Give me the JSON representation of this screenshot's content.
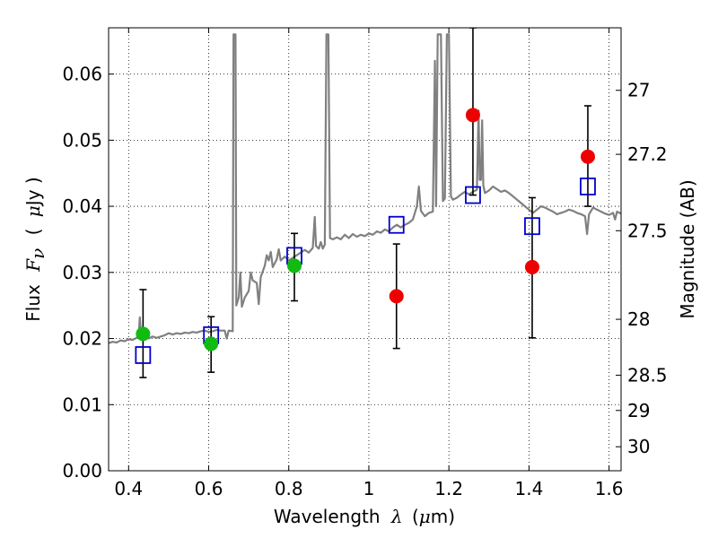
{
  "chart_data": {
    "type": "scatter",
    "xlabel": {
      "main": "Wavelength",
      "symbol": "λ",
      "unit_open": "(",
      "unit_mu": "μ",
      "unit_rest": "m)"
    },
    "ylabel": {
      "main": "Flux",
      "symbol": "F",
      "subscript": "ν",
      "unit_open": "(",
      "unit_mu": "μ",
      "unit_rest": "Jy )"
    },
    "y2label": "Magnitude (AB)",
    "xlim": [
      0.35,
      1.63
    ],
    "ylim": [
      0.0,
      0.067
    ],
    "x_ticks": [
      0.4,
      0.6,
      0.8,
      1.0,
      1.2,
      1.4,
      1.6
    ],
    "x_tick_labels": [
      "0.4",
      "0.6",
      "0.8",
      "1",
      "1.2",
      "1.4",
      "1.6"
    ],
    "y_ticks": [
      0.0,
      0.01,
      0.02,
      0.03,
      0.04,
      0.05,
      0.06
    ],
    "y_tick_labels": [
      "0.00",
      "0.01",
      "0.02",
      "0.03",
      "0.04",
      "0.05",
      "0.06"
    ],
    "mag_ticks": [
      27,
      27.2,
      27.5,
      28,
      28.5,
      29,
      30
    ],
    "mag_tick_labels": [
      "27",
      "27.2",
      "27.5",
      "28",
      "28.5",
      "29",
      "30"
    ],
    "grid": true,
    "colors": {
      "spectrum": "#808080",
      "model": "#0000cc",
      "red": "#ee0000",
      "green": "#11bb11",
      "error": "#000000"
    },
    "spectrum": {
      "name": "model spectrum",
      "points": [
        [
          0.35,
          0.0193
        ],
        [
          0.36,
          0.0195
        ],
        [
          0.37,
          0.0194
        ],
        [
          0.38,
          0.0197
        ],
        [
          0.39,
          0.0196
        ],
        [
          0.4,
          0.0199
        ],
        [
          0.41,
          0.0198
        ],
        [
          0.42,
          0.0201
        ],
        [
          0.425,
          0.0205
        ],
        [
          0.428,
          0.0232
        ],
        [
          0.431,
          0.0205
        ],
        [
          0.44,
          0.0203
        ],
        [
          0.45,
          0.02
        ],
        [
          0.46,
          0.0203
        ],
        [
          0.47,
          0.0201
        ],
        [
          0.48,
          0.0203
        ],
        [
          0.49,
          0.0205
        ],
        [
          0.5,
          0.0208
        ],
        [
          0.51,
          0.0206
        ],
        [
          0.52,
          0.0208
        ],
        [
          0.53,
          0.0207
        ],
        [
          0.54,
          0.0209
        ],
        [
          0.55,
          0.0208
        ],
        [
          0.56,
          0.021
        ],
        [
          0.57,
          0.0209
        ],
        [
          0.58,
          0.0211
        ],
        [
          0.59,
          0.0212
        ],
        [
          0.6,
          0.021
        ],
        [
          0.61,
          0.0211
        ],
        [
          0.62,
          0.0213
        ],
        [
          0.63,
          0.0212
        ],
        [
          0.64,
          0.0212
        ],
        [
          0.645,
          0.02
        ],
        [
          0.65,
          0.0212
        ],
        [
          0.66,
          0.0211
        ],
        [
          0.662,
          0.066
        ],
        [
          0.667,
          0.066
        ],
        [
          0.669,
          0.025
        ],
        [
          0.675,
          0.0262
        ],
        [
          0.679,
          0.03
        ],
        [
          0.683,
          0.0248
        ],
        [
          0.69,
          0.0262
        ],
        [
          0.7,
          0.0272
        ],
        [
          0.705,
          0.03
        ],
        [
          0.71,
          0.0288
        ],
        [
          0.72,
          0.0284
        ],
        [
          0.725,
          0.0252
        ],
        [
          0.73,
          0.0293
        ],
        [
          0.74,
          0.031
        ],
        [
          0.745,
          0.0326
        ],
        [
          0.75,
          0.0318
        ],
        [
          0.755,
          0.0331
        ],
        [
          0.76,
          0.0308
        ],
        [
          0.77,
          0.032
        ],
        [
          0.775,
          0.0335
        ],
        [
          0.78,
          0.0318
        ],
        [
          0.79,
          0.0324
        ],
        [
          0.8,
          0.0318
        ],
        [
          0.81,
          0.0322
        ],
        [
          0.82,
          0.0326
        ],
        [
          0.83,
          0.033
        ],
        [
          0.84,
          0.0334
        ],
        [
          0.85,
          0.033
        ],
        [
          0.86,
          0.0337
        ],
        [
          0.865,
          0.0384
        ],
        [
          0.868,
          0.034
        ],
        [
          0.875,
          0.0336
        ],
        [
          0.88,
          0.0346
        ],
        [
          0.885,
          0.0336
        ],
        [
          0.89,
          0.0342
        ],
        [
          0.894,
          0.066
        ],
        [
          0.899,
          0.066
        ],
        [
          0.903,
          0.0352
        ],
        [
          0.91,
          0.035
        ],
        [
          0.92,
          0.0353
        ],
        [
          0.93,
          0.035
        ],
        [
          0.94,
          0.0357
        ],
        [
          0.95,
          0.0352
        ],
        [
          0.96,
          0.0358
        ],
        [
          0.97,
          0.0354
        ],
        [
          0.98,
          0.0357
        ],
        [
          0.99,
          0.0355
        ],
        [
          1.0,
          0.0359
        ],
        [
          1.01,
          0.0357
        ],
        [
          1.02,
          0.0362
        ],
        [
          1.03,
          0.036
        ],
        [
          1.04,
          0.0365
        ],
        [
          1.05,
          0.0362
        ],
        [
          1.06,
          0.0368
        ],
        [
          1.07,
          0.0372
        ],
        [
          1.08,
          0.0368
        ],
        [
          1.09,
          0.0372
        ],
        [
          1.1,
          0.0375
        ],
        [
          1.11,
          0.038
        ],
        [
          1.12,
          0.04
        ],
        [
          1.125,
          0.043
        ],
        [
          1.13,
          0.0393
        ],
        [
          1.14,
          0.0385
        ],
        [
          1.15,
          0.039
        ],
        [
          1.16,
          0.0392
        ],
        [
          1.165,
          0.062
        ],
        [
          1.168,
          0.04
        ],
        [
          1.172,
          0.066
        ],
        [
          1.18,
          0.066
        ],
        [
          1.185,
          0.0408
        ],
        [
          1.19,
          0.0412
        ],
        [
          1.195,
          0.066
        ],
        [
          1.2,
          0.066
        ],
        [
          1.205,
          0.0415
        ],
        [
          1.21,
          0.041
        ],
        [
          1.22,
          0.0413
        ],
        [
          1.23,
          0.0418
        ],
        [
          1.24,
          0.0422
        ],
        [
          1.25,
          0.0418
        ],
        [
          1.26,
          0.0422
        ],
        [
          1.27,
          0.0425
        ],
        [
          1.274,
          0.0545
        ],
        [
          1.277,
          0.044
        ],
        [
          1.28,
          0.044
        ],
        [
          1.283,
          0.053
        ],
        [
          1.286,
          0.0432
        ],
        [
          1.29,
          0.042
        ],
        [
          1.3,
          0.0424
        ],
        [
          1.31,
          0.043
        ],
        [
          1.32,
          0.0426
        ],
        [
          1.33,
          0.0422
        ],
        [
          1.34,
          0.0424
        ],
        [
          1.35,
          0.042
        ],
        [
          1.36,
          0.0415
        ],
        [
          1.37,
          0.041
        ],
        [
          1.38,
          0.0405
        ],
        [
          1.39,
          0.04
        ],
        [
          1.4,
          0.0395
        ],
        [
          1.41,
          0.039
        ],
        [
          1.42,
          0.0395
        ],
        [
          1.43,
          0.04
        ],
        [
          1.44,
          0.0398
        ],
        [
          1.45,
          0.0395
        ],
        [
          1.46,
          0.0392
        ],
        [
          1.47,
          0.0388
        ],
        [
          1.48,
          0.039
        ],
        [
          1.49,
          0.0392
        ],
        [
          1.5,
          0.0395
        ],
        [
          1.51,
          0.0393
        ],
        [
          1.52,
          0.039
        ],
        [
          1.53,
          0.0388
        ],
        [
          1.54,
          0.0385
        ],
        [
          1.545,
          0.0358
        ],
        [
          1.55,
          0.0388
        ],
        [
          1.56,
          0.0398
        ],
        [
          1.57,
          0.0395
        ],
        [
          1.58,
          0.0392
        ],
        [
          1.59,
          0.0389
        ],
        [
          1.6,
          0.0387
        ],
        [
          1.61,
          0.039
        ],
        [
          1.615,
          0.038
        ],
        [
          1.62,
          0.0392
        ],
        [
          1.63,
          0.0389
        ]
      ]
    },
    "model_points": {
      "name": "model photometry",
      "x": [
        0.436,
        0.606,
        0.814,
        1.069,
        1.26,
        1.408,
        1.547
      ],
      "y": [
        0.0175,
        0.0205,
        0.0325,
        0.0372,
        0.0417,
        0.037,
        0.043
      ]
    },
    "observed": [
      {
        "x": 0.436,
        "y": 0.0207,
        "err_lo": 0.0141,
        "err_hi": 0.0274,
        "color": "green"
      },
      {
        "x": 0.606,
        "y": 0.0192,
        "err_lo": 0.0149,
        "err_hi": 0.0233,
        "color": "green"
      },
      {
        "x": 0.814,
        "y": 0.031,
        "err_lo": 0.0257,
        "err_hi": 0.0359,
        "color": "green"
      },
      {
        "x": 1.069,
        "y": 0.0264,
        "err_lo": 0.0185,
        "err_hi": 0.0343,
        "color": "red"
      },
      {
        "x": 1.26,
        "y": 0.0538,
        "err_lo": 0.0417,
        "err_hi": 0.067,
        "color": "red"
      },
      {
        "x": 1.408,
        "y": 0.0308,
        "err_lo": 0.0201,
        "err_hi": 0.0413,
        "color": "red"
      },
      {
        "x": 1.547,
        "y": 0.0475,
        "err_lo": 0.04,
        "err_hi": 0.0552,
        "color": "red"
      }
    ]
  }
}
